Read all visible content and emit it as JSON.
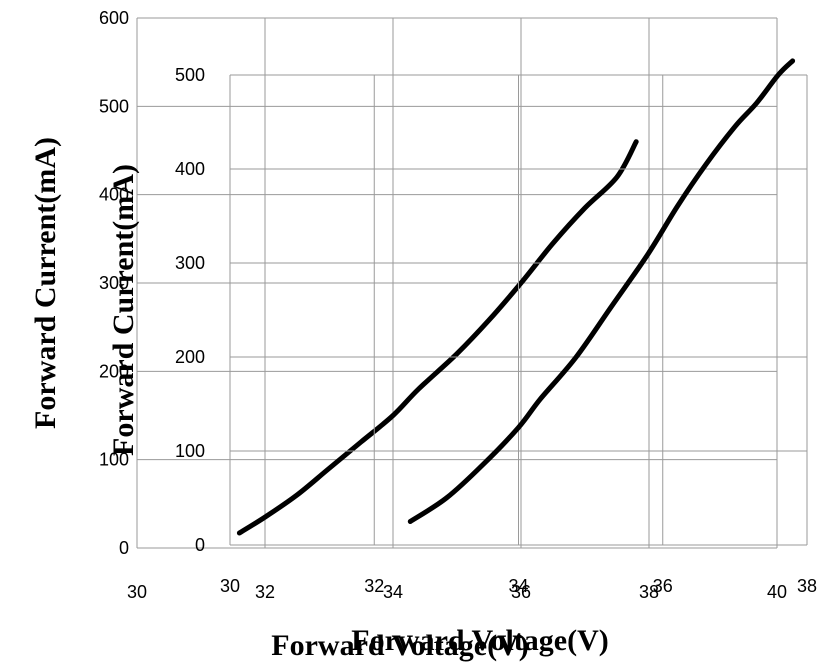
{
  "chart_data": [
    {
      "type": "line",
      "xlabel": "Forward Voltage(V)",
      "ylabel": "Forward Current(mA)",
      "xlim": [
        30,
        40
      ],
      "ylim": [
        0,
        600
      ],
      "x_ticks": [
        "30",
        "32",
        "34",
        "36",
        "38",
        "40"
      ],
      "y_ticks": [
        "0",
        "100",
        "200",
        "300",
        "400",
        "500",
        "600"
      ],
      "grid": true,
      "series": [
        {
          "x": [
            31.6,
            32,
            32.5,
            33,
            33.5,
            34,
            34.4,
            35,
            35.5,
            36,
            36.5,
            37,
            37.5,
            37.8
          ],
          "values": [
            17,
            35,
            60,
            90,
            120,
            150,
            180,
            220,
            258,
            300,
            345,
            385,
            420,
            460
          ]
        }
      ]
    },
    {
      "type": "line",
      "xlabel": "Forward Voltage(V)",
      "ylabel": "Forward Current(mA)",
      "xlim": [
        30,
        38
      ],
      "ylim": [
        0,
        500
      ],
      "x_ticks": [
        "30",
        "32",
        "34",
        "36",
        "38"
      ],
      "y_ticks": [
        "0",
        "100",
        "200",
        "300",
        "400",
        "500"
      ],
      "grid": true,
      "series": [
        {
          "x": [
            32.5,
            33,
            33.5,
            34,
            34.3,
            34.8,
            35.3,
            35.8,
            36.2,
            36.6,
            37,
            37.3,
            37.6,
            37.8
          ],
          "values": [
            25,
            50,
            85,
            125,
            155,
            200,
            255,
            310,
            360,
            405,
            445,
            470,
            500,
            515
          ]
        }
      ]
    }
  ]
}
